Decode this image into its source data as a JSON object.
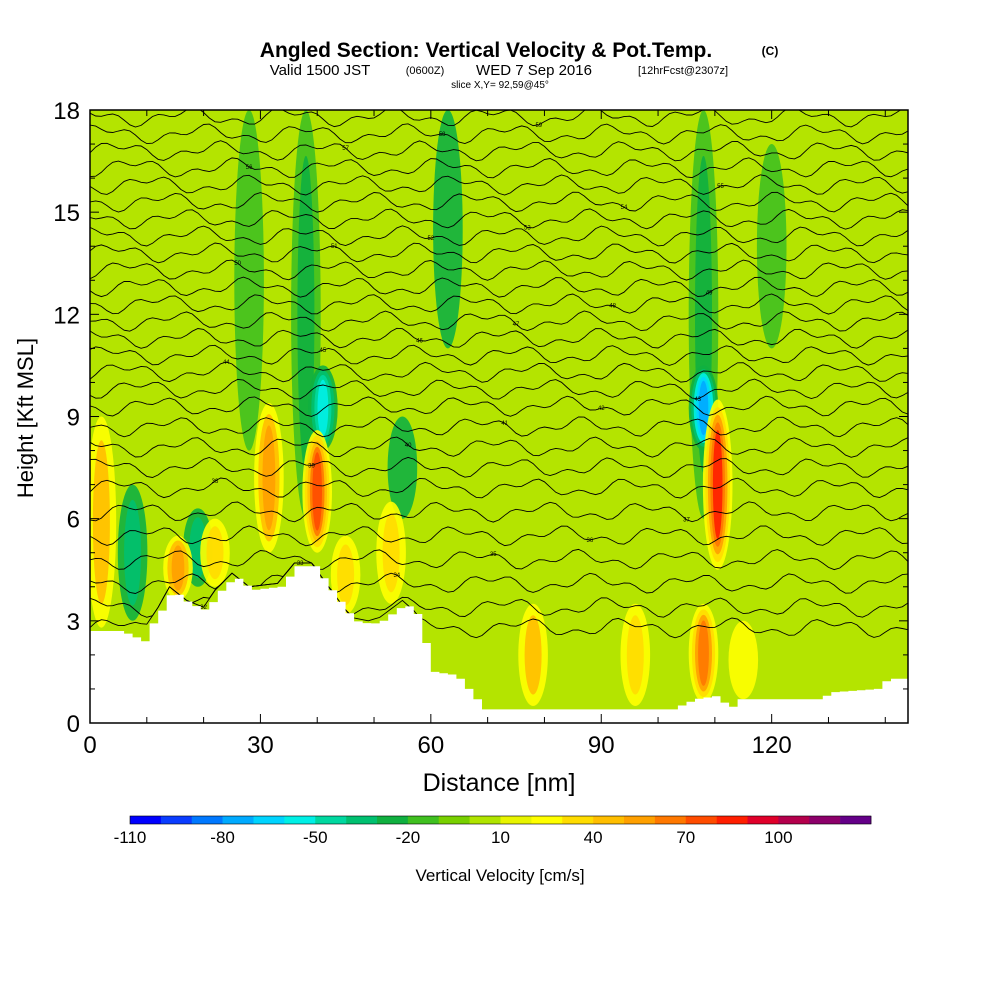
{
  "chart_data": {
    "type": "heatmap",
    "title": "Angled Section: Vertical Velocity & Pot.Temp.",
    "title_units": "(C)",
    "subtitle_valid": "Valid 1500 JST",
    "subtitle_utc": "(0600Z)",
    "subtitle_date": "WED 7 Sep 2016",
    "subtitle_fcst": "[12hrFcst@2307z]",
    "slice_label": "slice X,Y= 92,59@45°",
    "xlabel": "Distance [nm]",
    "ylabel": "Height [Kft MSL]",
    "xlim": [
      0,
      144
    ],
    "ylim": [
      0,
      18
    ],
    "xticks": [
      0,
      30,
      60,
      90,
      120
    ],
    "xtick_labels": [
      "0",
      "30",
      "60",
      "90",
      "120"
    ],
    "yticks": [
      0,
      3,
      6,
      9,
      12,
      15,
      18
    ],
    "ytick_labels": [
      "0",
      "3",
      "6",
      "9",
      "12",
      "15",
      "18"
    ],
    "colorbar": {
      "label": "Vertical Velocity [cm/s]",
      "min": -110,
      "max": 120,
      "step": 10,
      "tick_labels": [
        "-110",
        "-80",
        "-50",
        "-20",
        "10",
        "40",
        "70",
        "100"
      ],
      "tick_values": [
        -110,
        -80,
        -50,
        -20,
        10,
        40,
        70,
        100
      ],
      "colors": [
        "#0000ff",
        "#0a3cff",
        "#0078ff",
        "#00aaff",
        "#00d4ff",
        "#00f0e6",
        "#00d8a0",
        "#00c070",
        "#10b040",
        "#40c020",
        "#78d000",
        "#b0e400",
        "#e8f400",
        "#ffff00",
        "#ffdc00",
        "#ffbe00",
        "#ffa000",
        "#ff7800",
        "#ff4c00",
        "#ff1e00",
        "#e0002a",
        "#b4004c",
        "#8c006a",
        "#640088"
      ]
    },
    "terrain": [
      [
        0,
        2.7
      ],
      [
        5,
        2.7
      ],
      [
        9,
        2.4
      ],
      [
        10,
        2.8
      ],
      [
        12,
        3.3
      ],
      [
        14,
        3.9
      ],
      [
        17,
        3.5
      ],
      [
        20,
        3.3
      ],
      [
        22,
        3.8
      ],
      [
        25,
        4.3
      ],
      [
        28,
        3.9
      ],
      [
        33,
        4.0
      ],
      [
        36,
        4.6
      ],
      [
        39,
        4.6
      ],
      [
        42,
        3.9
      ],
      [
        46,
        3.0
      ],
      [
        49,
        2.9
      ],
      [
        51,
        3.0
      ],
      [
        55,
        3.5
      ],
      [
        57,
        3.2
      ],
      [
        60,
        1.5
      ],
      [
        64,
        1.4
      ],
      [
        67,
        0.8
      ],
      [
        69,
        0.4
      ],
      [
        90,
        0.4
      ],
      [
        102,
        0.4
      ],
      [
        106,
        0.7
      ],
      [
        110,
        0.8
      ],
      [
        112,
        0.4
      ],
      [
        114,
        0.7
      ],
      [
        128,
        0.7
      ],
      [
        130,
        0.9
      ],
      [
        138,
        1.0
      ],
      [
        140,
        1.3
      ],
      [
        144,
        1.3
      ]
    ],
    "updrafts": [
      {
        "x": 2,
        "z0": 2.8,
        "z1": 9.0,
        "value": 40
      },
      {
        "x": 15.5,
        "z0": 3.6,
        "z1": 5.5,
        "value": 55
      },
      {
        "x": 22,
        "z0": 4.0,
        "z1": 6.0,
        "value": 30
      },
      {
        "x": 31.5,
        "z0": 5.0,
        "z1": 9.4,
        "value": 55
      },
      {
        "x": 40,
        "z0": 5.0,
        "z1": 8.6,
        "value": 75
      },
      {
        "x": 45,
        "z0": 3.2,
        "z1": 5.5,
        "value": 35
      },
      {
        "x": 53,
        "z0": 3.5,
        "z1": 6.5,
        "value": 30
      },
      {
        "x": 78,
        "z0": 0.5,
        "z1": 3.5,
        "value": 40
      },
      {
        "x": 96,
        "z0": 0.5,
        "z1": 3.5,
        "value": 35
      },
      {
        "x": 108,
        "z0": 0.6,
        "z1": 3.5,
        "value": 65
      },
      {
        "x": 110.5,
        "z0": 4.5,
        "z1": 9.5,
        "value": 80
      },
      {
        "x": 115,
        "z0": 0.7,
        "z1": 3.0,
        "value": 25
      }
    ],
    "downdrafts": [
      {
        "x": 7.5,
        "z0": 3.0,
        "z1": 7.0,
        "value": -40
      },
      {
        "x": 19,
        "z0": 4.0,
        "z1": 6.3,
        "value": -35
      },
      {
        "x": 28,
        "z0": 8.0,
        "z1": 18.0,
        "value": -20
      },
      {
        "x": 38,
        "z0": 6.0,
        "z1": 18.0,
        "value": -30
      },
      {
        "x": 41,
        "z0": 8.0,
        "z1": 10.5,
        "value": -60
      },
      {
        "x": 55,
        "z0": 6.0,
        "z1": 9.0,
        "value": -25
      },
      {
        "x": 63,
        "z0": 11.0,
        "z1": 18.0,
        "value": -25
      },
      {
        "x": 108,
        "z0": 6.0,
        "z1": 18.0,
        "value": -30
      },
      {
        "x": 108,
        "z0": 8.0,
        "z1": 10.5,
        "value": -80
      },
      {
        "x": 120,
        "z0": 11.0,
        "z1": 17.0,
        "value": -15
      }
    ],
    "isentropes": [
      {
        "theta": 32,
        "z": 2.8
      },
      {
        "theta": 33,
        "z": 3.4
      },
      {
        "theta": 34,
        "z": 4.1
      },
      {
        "theta": 35,
        "z": 4.8
      },
      {
        "theta": 36,
        "z": 5.5
      },
      {
        "theta": 37,
        "z": 6.2
      },
      {
        "theta": 38,
        "z": 6.9
      },
      {
        "theta": 39,
        "z": 7.5
      },
      {
        "theta": 40,
        "z": 8.1
      },
      {
        "theta": 41,
        "z": 8.7
      },
      {
        "theta": 42,
        "z": 9.3
      },
      {
        "theta": 43,
        "z": 9.8
      },
      {
        "theta": 44,
        "z": 10.3
      },
      {
        "theta": 45,
        "z": 10.8
      },
      {
        "theta": 46,
        "z": 11.3
      },
      {
        "theta": 47,
        "z": 11.8
      },
      {
        "theta": 48,
        "z": 12.3
      },
      {
        "theta": 49,
        "z": 12.8
      },
      {
        "theta": 50,
        "z": 13.3
      },
      {
        "theta": 51,
        "z": 13.8
      },
      {
        "theta": 52,
        "z": 14.3
      },
      {
        "theta": 53,
        "z": 14.8
      },
      {
        "theta": 54,
        "z": 15.3
      },
      {
        "theta": 55,
        "z": 15.8
      },
      {
        "theta": 56,
        "z": 16.3
      },
      {
        "theta": 57,
        "z": 16.8
      },
      {
        "theta": 58,
        "z": 17.3
      },
      {
        "theta": 59,
        "z": 17.8
      }
    ]
  }
}
